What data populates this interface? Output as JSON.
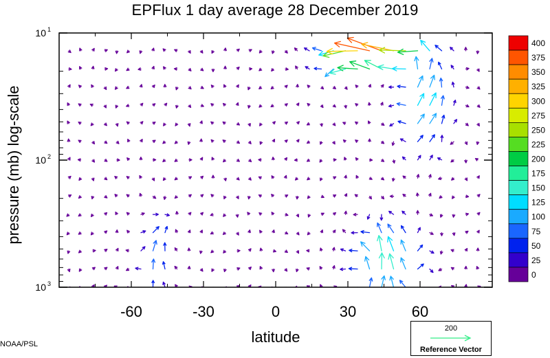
{
  "chart_data": {
    "type": "quiver",
    "title": "EPFlux  1 day average  28 December 2019",
    "xlabel": "latitude",
    "ylabel": "pressure (mb)  log-scale",
    "xlim": [
      -90,
      90
    ],
    "ylim": [
      1000,
      10
    ],
    "y_scale": "log",
    "x_ticks": [
      -60,
      -30,
      0,
      30,
      60
    ],
    "x_tick_labels": [
      "-60",
      "-30",
      "0",
      "30",
      "60"
    ],
    "y_major_ticks": [
      {
        "base": "10",
        "exp": "1"
      },
      {
        "base": "10",
        "exp": "2"
      },
      {
        "base": "10",
        "exp": "3"
      }
    ],
    "colorbar": {
      "labels": [
        "400",
        "375",
        "350",
        "325",
        "300",
        "275",
        "250",
        "225",
        "200",
        "175",
        "150",
        "125",
        "100",
        "75",
        "50",
        "25",
        "0"
      ],
      "colors": [
        "#ee0000",
        "#ff5500",
        "#ff8c00",
        "#ffb000",
        "#ffd400",
        "#d8ec00",
        "#a8e000",
        "#55dd22",
        "#00cc44",
        "#22ee99",
        "#33eecc",
        "#00ddff",
        "#1aaaff",
        "#1a66ff",
        "#0022ee",
        "#3300cc",
        "#660099"
      ]
    },
    "reference_vector": {
      "value": "200",
      "label": "Reference Vector",
      "color": "#33ee88"
    },
    "vector_fields": [
      {
        "lat_range": [
          -88,
          85
        ],
        "p_range": [
          15,
          1000
        ],
        "magnitude_range": [
          0,
          75
        ],
        "color": "#2244ee",
        "direction": "weak mixed"
      },
      {
        "lat_range": [
          -55,
          -45
        ],
        "p_range": [
          350,
          950
        ],
        "magnitude_range": [
          75,
          150
        ],
        "color": "#1aaaff",
        "direction": "upward"
      },
      {
        "lat_range": [
          30,
          65
        ],
        "p_range": [
          330,
          1000
        ],
        "magnitude_range": [
          150,
          225
        ],
        "color": "#33ee88",
        "direction": "upward-poleward"
      },
      {
        "lat_range": [
          45,
          75
        ],
        "p_range": [
          20,
          90
        ],
        "magnitude_range": [
          125,
          250
        ],
        "color": "#33eecc",
        "direction": "upward"
      },
      {
        "lat_range": [
          20,
          60
        ],
        "p_range": [
          19,
          25
        ],
        "magnitude_range": [
          250,
          300
        ],
        "color": "#a8e000",
        "direction": "equatorward"
      },
      {
        "lat_range": [
          15,
          65
        ],
        "p_range": [
          10,
          16
        ],
        "magnitude_range": [
          350,
          400
        ],
        "color": "#ee0000",
        "direction": "equatorward"
      }
    ]
  },
  "footer": {
    "credit": "NOAA/PSL"
  }
}
